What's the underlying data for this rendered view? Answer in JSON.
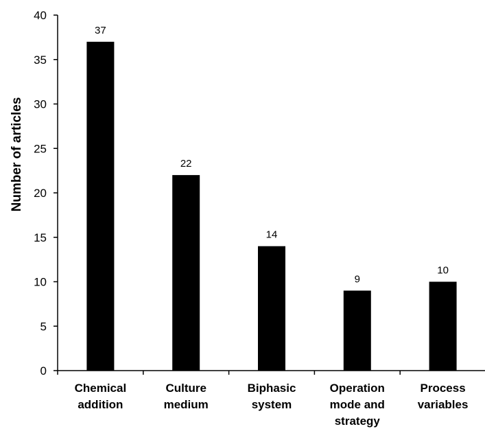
{
  "chart_data": {
    "type": "bar",
    "title": "",
    "xlabel": "",
    "ylabel": "Number of articles",
    "categories": [
      [
        "Chemical",
        "addition"
      ],
      [
        "Culture",
        "medium"
      ],
      [
        "Biphasic",
        "system"
      ],
      [
        "Operation",
        "mode and",
        "strategy"
      ],
      [
        "Process",
        "variables"
      ]
    ],
    "values": [
      37,
      22,
      14,
      9,
      10
    ],
    "data_labels": [
      "37",
      "22",
      "14",
      "9",
      "10"
    ],
    "ylim": [
      0,
      40
    ],
    "yticks": [
      0,
      5,
      10,
      15,
      20,
      25,
      30,
      35,
      40
    ],
    "grid": false,
    "legend": "none",
    "bar_color": "#000000"
  }
}
